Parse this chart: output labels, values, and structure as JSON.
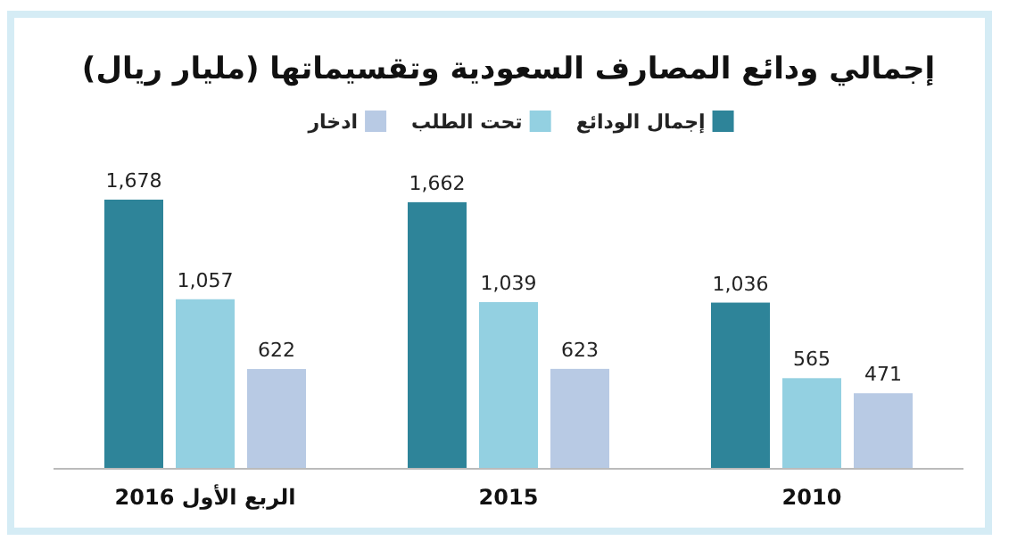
{
  "chart_data": {
    "type": "bar",
    "title": "إجمالي ودائع المصارف السعودية وتقسيماتها (مليار ريال)",
    "categories": [
      "الربع الأول 2016",
      "2015",
      "2010"
    ],
    "series": [
      {
        "name": "إجمال الودائع",
        "color": "#2e8499",
        "values": [
          1678,
          1662,
          1036
        ],
        "value_labels": [
          "1,678",
          "1,662",
          "1,036"
        ]
      },
      {
        "name": "تحت الطلب",
        "color": "#93d0e1",
        "values": [
          1057,
          1039,
          565
        ],
        "value_labels": [
          "1,057",
          "1,039",
          "565"
        ]
      },
      {
        "name": "ادخار",
        "color": "#b8cae4",
        "values": [
          622,
          623,
          471
        ],
        "value_labels": [
          "622",
          "623",
          "471"
        ]
      }
    ],
    "legend": "top"
  }
}
